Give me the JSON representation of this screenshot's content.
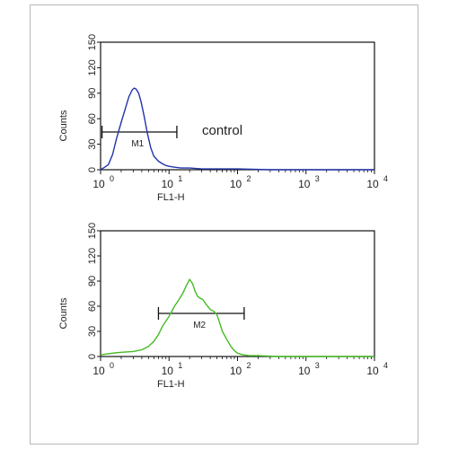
{
  "chart_data": [
    {
      "type": "line",
      "xlabel": "FL1-H",
      "ylabel": "Counts",
      "x_scale": "log",
      "xlim": [
        1,
        10000
      ],
      "ylim": [
        0,
        150
      ],
      "y_ticks": [
        "0",
        "30",
        "60",
        "90",
        "120",
        "150"
      ],
      "x_ticks": [
        {
          "base": "10",
          "exp": "0"
        },
        {
          "base": "10",
          "exp": "1"
        },
        {
          "base": "10",
          "exp": "2"
        },
        {
          "base": "10",
          "exp": "3"
        },
        {
          "base": "10",
          "exp": "4"
        }
      ],
      "annotation": "control",
      "marker": {
        "label": "M1",
        "x_start": 1.05,
        "x_end": 13
      },
      "series": [
        {
          "color": "#2233aa",
          "x": [
            1.0,
            1.15,
            1.3,
            1.5,
            1.7,
            2.0,
            2.3,
            2.6,
            2.9,
            3.1,
            3.3,
            3.6,
            3.9,
            4.3,
            4.8,
            5.4,
            6.0,
            7.0,
            8.0,
            9.0,
            10.0,
            12.0,
            15.0,
            20.0,
            30.0,
            50.0,
            100.0,
            300.0,
            1000.0,
            3000.0,
            10000.0
          ],
          "values": [
            0,
            3,
            6,
            18,
            36,
            56,
            72,
            86,
            94,
            96,
            95,
            90,
            80,
            64,
            44,
            26,
            16,
            10,
            7,
            5,
            4,
            3,
            2,
            2,
            1,
            1,
            1,
            0,
            0,
            0,
            0
          ]
        }
      ]
    },
    {
      "type": "line",
      "xlabel": "FL1-H",
      "ylabel": "Counts",
      "x_scale": "log",
      "xlim": [
        1,
        10000
      ],
      "ylim": [
        0,
        150
      ],
      "y_ticks": [
        "0",
        "30",
        "60",
        "90",
        "120",
        "150"
      ],
      "x_ticks": [
        {
          "base": "10",
          "exp": "0"
        },
        {
          "base": "10",
          "exp": "1"
        },
        {
          "base": "10",
          "exp": "2"
        },
        {
          "base": "10",
          "exp": "3"
        },
        {
          "base": "10",
          "exp": "4"
        }
      ],
      "marker": {
        "label": "M2",
        "x_start": 7,
        "x_end": 125
      },
      "series": [
        {
          "color": "#44bb22",
          "x": [
            1.0,
            1.5,
            2.0,
            3.0,
            4.0,
            5.0,
            6.0,
            7.0,
            8.0,
            10.0,
            12.0,
            14.0,
            16.0,
            18.0,
            20.0,
            22.0,
            24.0,
            26.0,
            28.0,
            31.0,
            35.0,
            40.0,
            45.0,
            50.0,
            55.0,
            60.0,
            70.0,
            80.0,
            90.0,
            100.0,
            120.0,
            150.0,
            200.0,
            400.0,
            1000.0,
            3000.0,
            10000.0
          ],
          "values": [
            2,
            4,
            5,
            6,
            8,
            12,
            18,
            26,
            36,
            48,
            60,
            68,
            76,
            85,
            92,
            87,
            78,
            72,
            70,
            68,
            62,
            56,
            54,
            50,
            40,
            30,
            20,
            12,
            7,
            4,
            2,
            1,
            1,
            0,
            0,
            0,
            0
          ]
        }
      ]
    }
  ]
}
